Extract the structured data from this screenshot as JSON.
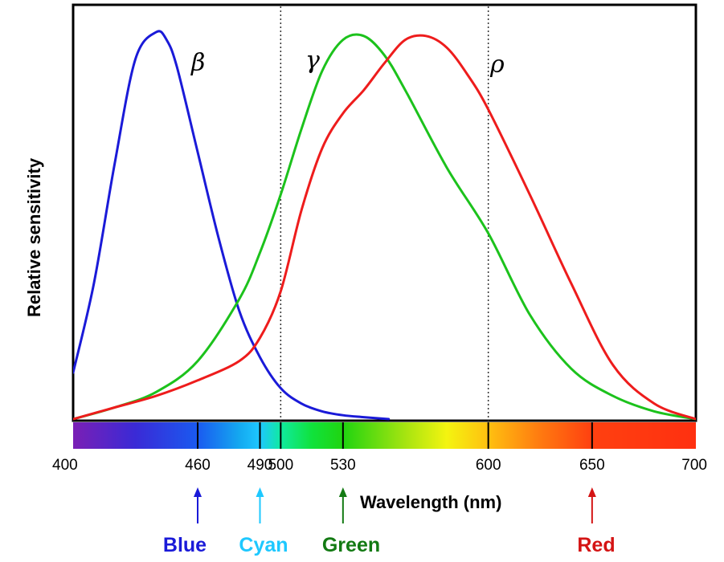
{
  "chart_data": {
    "type": "line",
    "title": "",
    "xlabel": "Wavelength (nm)",
    "ylabel": "Relative sensitivity",
    "xlim": [
      400,
      700
    ],
    "ylim": [
      0,
      1
    ],
    "grid": false,
    "x_ticks": [
      400,
      460,
      490,
      500,
      530,
      600,
      650,
      700
    ],
    "x_tick_labels": [
      "400",
      "460",
      "490",
      "500",
      "530",
      "600",
      "650",
      "700"
    ],
    "reference_lines": [
      500,
      600
    ],
    "series": [
      {
        "name": "β",
        "color": "#1a1ad8",
        "x": [
          400,
          410,
          420,
          430,
          440,
          445,
          450,
          460,
          470,
          480,
          490,
          500,
          510,
          520,
          530,
          540,
          552
        ],
        "y": [
          0.12,
          0.35,
          0.66,
          0.93,
          1.0,
          0.98,
          0.91,
          0.69,
          0.47,
          0.28,
          0.16,
          0.08,
          0.04,
          0.02,
          0.01,
          0.005,
          0.0
        ]
      },
      {
        "name": "γ",
        "color": "#1cc21c",
        "x": [
          400,
          420,
          440,
          460,
          480,
          490,
          500,
          510,
          520,
          530,
          540,
          550,
          560,
          580,
          600,
          620,
          640,
          660,
          680,
          700
        ],
        "y": [
          0.0,
          0.03,
          0.07,
          0.15,
          0.31,
          0.43,
          0.58,
          0.75,
          0.9,
          0.98,
          0.99,
          0.94,
          0.85,
          0.65,
          0.48,
          0.27,
          0.13,
          0.06,
          0.02,
          0.0
        ]
      },
      {
        "name": "ρ",
        "color": "#ee1c1c",
        "x": [
          400,
          420,
          440,
          460,
          480,
          490,
          500,
          510,
          520,
          530,
          540,
          550,
          560,
          570,
          580,
          590,
          600,
          620,
          640,
          660,
          680,
          700
        ],
        "y": [
          0.0,
          0.03,
          0.06,
          0.1,
          0.15,
          0.21,
          0.33,
          0.54,
          0.7,
          0.79,
          0.85,
          0.92,
          0.98,
          0.99,
          0.96,
          0.89,
          0.8,
          0.58,
          0.35,
          0.14,
          0.04,
          0.0
        ]
      }
    ],
    "annotations": [
      {
        "text": "Blue",
        "x": 460,
        "color": "#1a1ad8"
      },
      {
        "text": "Cyan",
        "x": 490,
        "color": "#1ec8ff"
      },
      {
        "text": "Green",
        "x": 530,
        "color": "#137a13"
      },
      {
        "text": "Red",
        "x": 650,
        "color": "#d41414"
      }
    ],
    "spectrum_bar": {
      "stops": [
        {
          "nm": 400,
          "color": "#7a1fb5"
        },
        {
          "nm": 430,
          "color": "#3a2ad6"
        },
        {
          "nm": 460,
          "color": "#1a5af0"
        },
        {
          "nm": 480,
          "color": "#14a8f0"
        },
        {
          "nm": 490,
          "color": "#1ec8ff"
        },
        {
          "nm": 500,
          "color": "#10eaa0"
        },
        {
          "nm": 515,
          "color": "#10e23c"
        },
        {
          "nm": 530,
          "color": "#20d410"
        },
        {
          "nm": 560,
          "color": "#a6e410"
        },
        {
          "nm": 580,
          "color": "#f4f410"
        },
        {
          "nm": 600,
          "color": "#ffc010"
        },
        {
          "nm": 625,
          "color": "#ff7a10"
        },
        {
          "nm": 650,
          "color": "#ff4010"
        },
        {
          "nm": 700,
          "color": "#ff3010"
        }
      ]
    }
  }
}
